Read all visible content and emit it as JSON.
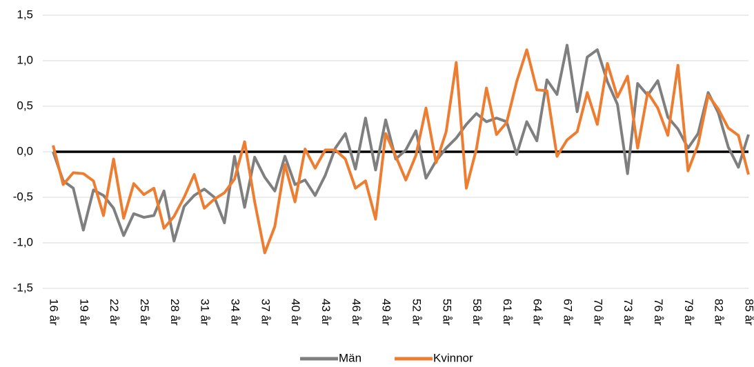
{
  "chart_data": {
    "type": "line",
    "categories": [
      "16 år",
      null,
      null,
      "19 år",
      null,
      null,
      "22 år",
      null,
      null,
      "25 år",
      null,
      null,
      "28 år",
      null,
      null,
      "31 år",
      null,
      null,
      "34 år",
      null,
      null,
      "37 år",
      null,
      null,
      "40 år",
      null,
      null,
      "43 år",
      null,
      null,
      "46 år",
      null,
      null,
      "49 år",
      null,
      null,
      "52 år",
      null,
      null,
      "55 år",
      null,
      null,
      "58 år",
      null,
      null,
      "61 år",
      null,
      null,
      "64 år",
      null,
      null,
      "67 år",
      null,
      null,
      "70 år",
      null,
      null,
      "73 år",
      null,
      null,
      "76 år",
      null,
      null,
      "79 år",
      null,
      null,
      "82 år",
      null,
      null,
      "85 år"
    ],
    "series": [
      {
        "name": "Män",
        "color": "#7f7f7f",
        "values": [
          0.0,
          -0.32,
          -0.4,
          -0.86,
          -0.42,
          -0.48,
          -0.62,
          -0.92,
          -0.68,
          -0.72,
          -0.7,
          -0.43,
          -0.98,
          -0.6,
          -0.48,
          -0.41,
          -0.5,
          -0.78,
          -0.05,
          -0.61,
          -0.06,
          -0.28,
          -0.43,
          -0.05,
          -0.36,
          -0.31,
          -0.48,
          -0.26,
          0.04,
          0.2,
          -0.19,
          0.37,
          -0.2,
          0.35,
          -0.08,
          0.02,
          0.23,
          -0.29,
          -0.1,
          0.04,
          0.15,
          0.3,
          0.42,
          0.33,
          0.37,
          0.33,
          -0.03,
          0.33,
          0.12,
          0.79,
          0.63,
          1.17,
          0.44,
          1.04,
          1.12,
          0.77,
          0.52,
          -0.24,
          0.75,
          0.62,
          0.78,
          0.38,
          0.25,
          0.04,
          0.2,
          0.65,
          0.43,
          0.05,
          -0.17,
          0.19
        ]
      },
      {
        "name": "Kvinnor",
        "color": "#ed7d31",
        "values": [
          0.07,
          -0.36,
          -0.23,
          -0.24,
          -0.32,
          -0.7,
          -0.08,
          -0.73,
          -0.35,
          -0.47,
          -0.4,
          -0.84,
          -0.71,
          -0.5,
          -0.25,
          -0.62,
          -0.52,
          -0.45,
          -0.3,
          0.11,
          -0.55,
          -1.11,
          -0.82,
          -0.14,
          -0.55,
          0.03,
          -0.18,
          0.02,
          0.02,
          -0.08,
          -0.4,
          -0.32,
          -0.74,
          0.2,
          -0.05,
          -0.31,
          -0.04,
          0.48,
          -0.12,
          0.22,
          0.98,
          -0.4,
          0.03,
          0.7,
          0.19,
          0.32,
          0.77,
          1.12,
          0.68,
          0.67,
          -0.05,
          0.13,
          0.22,
          0.65,
          0.3,
          0.97,
          0.6,
          0.83,
          0.04,
          0.65,
          0.48,
          0.18,
          0.95,
          -0.21,
          0.08,
          0.62,
          0.47,
          0.26,
          0.18,
          -0.25
        ]
      }
    ],
    "ylim": [
      -1.5,
      1.5
    ],
    "yticks": [
      {
        "value": -1.5,
        "label": "-1,5"
      },
      {
        "value": -1.0,
        "label": "-1,0"
      },
      {
        "value": -0.5,
        "label": "-0,5"
      },
      {
        "value": 0,
        "label": "0,0"
      },
      {
        "value": 0.5,
        "label": "0,5"
      },
      {
        "value": 1.0,
        "label": "1,0"
      },
      {
        "value": 1.5,
        "label": "1,5"
      }
    ],
    "grid": true,
    "legend": "bottom"
  }
}
